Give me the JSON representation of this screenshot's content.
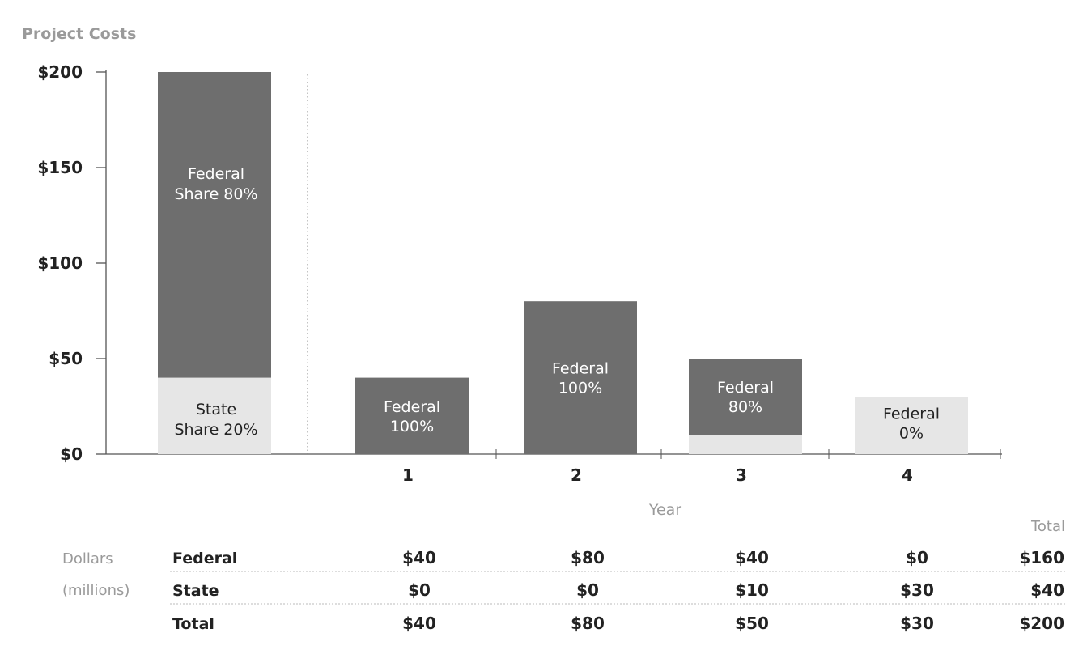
{
  "chart_data": {
    "type": "bar",
    "title": "Project Costs",
    "xlabel": "Year",
    "ylabel": "",
    "ylim": [
      0,
      200
    ],
    "yticks": [
      "$200",
      "$150",
      "$100",
      "$50",
      "$0"
    ],
    "ytick_values": [
      200,
      150,
      100,
      50,
      0
    ],
    "summary_bar": {
      "total": 200,
      "segments": [
        {
          "name": "State",
          "value": 40,
          "label_lines": [
            "State",
            "Share 20%"
          ]
        },
        {
          "name": "Federal",
          "value": 160,
          "label_lines": [
            "Federal",
            "Share 80%"
          ]
        }
      ]
    },
    "categories": [
      "1",
      "2",
      "3",
      "4"
    ],
    "series": [
      {
        "name": "Federal",
        "values": [
          40,
          80,
          40,
          0
        ]
      },
      {
        "name": "State",
        "values": [
          0,
          0,
          10,
          30
        ]
      }
    ],
    "bar_labels": [
      [
        "Federal",
        "100%"
      ],
      [
        "Federal",
        "100%"
      ],
      [
        "Federal",
        "80%"
      ],
      [
        "Federal",
        "0%"
      ]
    ],
    "colors": {
      "federal": "#6e6e6e",
      "state": "#e6e6e6",
      "axis": "#555555"
    }
  },
  "table": {
    "unit_label": [
      "Dollars",
      "(millions)"
    ],
    "total_header": "Total",
    "rows": [
      {
        "name": "Federal",
        "values": [
          "$40",
          "$80",
          "$40",
          "$0"
        ],
        "total": "$160"
      },
      {
        "name": "State",
        "values": [
          "$0",
          "$0",
          "$10",
          "$30"
        ],
        "total": "$40"
      },
      {
        "name": "Total",
        "values": [
          "$40",
          "$80",
          "$50",
          "$30"
        ],
        "total": "$200"
      }
    ]
  }
}
